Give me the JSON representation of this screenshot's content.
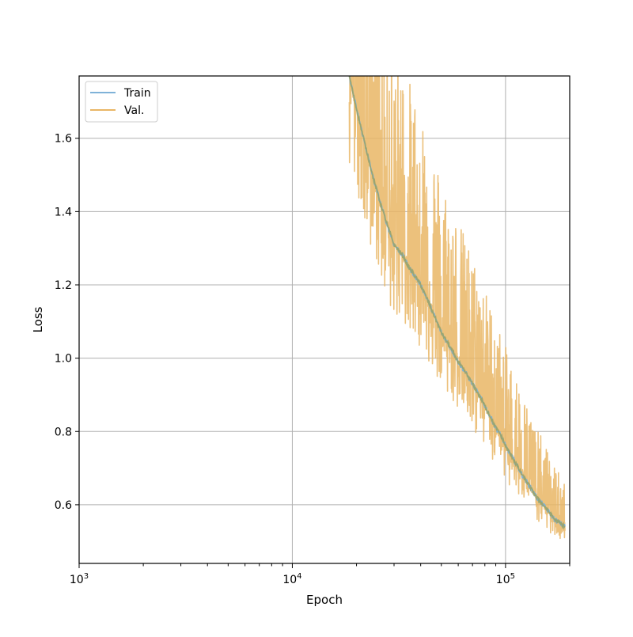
{
  "chart_data": {
    "type": "line",
    "xlabel": "Epoch",
    "ylabel": "Loss",
    "xscale": "log",
    "xlim": [
      1000,
      200000
    ],
    "ylim": [
      0.44,
      1.77
    ],
    "x_ticks": [
      {
        "value": 1000,
        "base": "10",
        "exp": "3"
      },
      {
        "value": 10000,
        "base": "10",
        "exp": "4"
      },
      {
        "value": 100000,
        "base": "10",
        "exp": "5"
      }
    ],
    "y_ticks": [
      0.6,
      0.8,
      1.0,
      1.2,
      1.4,
      1.6
    ],
    "y_tick_labels": [
      "0.6",
      "0.8",
      "1.0",
      "1.2",
      "1.4",
      "1.6"
    ],
    "grid": true,
    "legend_position": "top-left",
    "series": [
      {
        "name": "Train",
        "color": "#7fb2d8",
        "x": [
          18500,
          20000,
          22000,
          24000,
          26000,
          28000,
          30000,
          33000,
          35000,
          37000,
          40000,
          43000,
          46000,
          50000,
          55000,
          60000,
          65000,
          70000,
          75000,
          80000,
          85000,
          90000,
          95000,
          100000,
          110000,
          120000,
          130000,
          140000,
          150000,
          160000,
          170000,
          180000,
          190000
        ],
        "y": [
          1.77,
          1.68,
          1.58,
          1.49,
          1.42,
          1.36,
          1.31,
          1.28,
          1.25,
          1.23,
          1.2,
          1.16,
          1.12,
          1.07,
          1.03,
          0.99,
          0.96,
          0.93,
          0.9,
          0.87,
          0.84,
          0.81,
          0.79,
          0.76,
          0.72,
          0.68,
          0.65,
          0.62,
          0.6,
          0.58,
          0.56,
          0.55,
          0.54
        ]
      },
      {
        "name": "Val.",
        "color": "#e9b665",
        "noise": true,
        "x": [
          18500,
          20000,
          22000,
          24000,
          26000,
          28000,
          30000,
          33000,
          35000,
          37000,
          40000,
          43000,
          46000,
          50000,
          55000,
          60000,
          65000,
          70000,
          75000,
          80000,
          85000,
          90000,
          95000,
          100000,
          110000,
          120000,
          130000,
          140000,
          150000,
          160000,
          170000,
          180000,
          190000
        ],
        "y": [
          1.77,
          1.68,
          1.58,
          1.49,
          1.42,
          1.36,
          1.31,
          1.28,
          1.25,
          1.23,
          1.2,
          1.16,
          1.12,
          1.07,
          1.03,
          0.99,
          0.96,
          0.93,
          0.9,
          0.87,
          0.84,
          0.81,
          0.79,
          0.76,
          0.72,
          0.68,
          0.65,
          0.62,
          0.6,
          0.58,
          0.56,
          0.55,
          0.54
        ]
      }
    ]
  }
}
